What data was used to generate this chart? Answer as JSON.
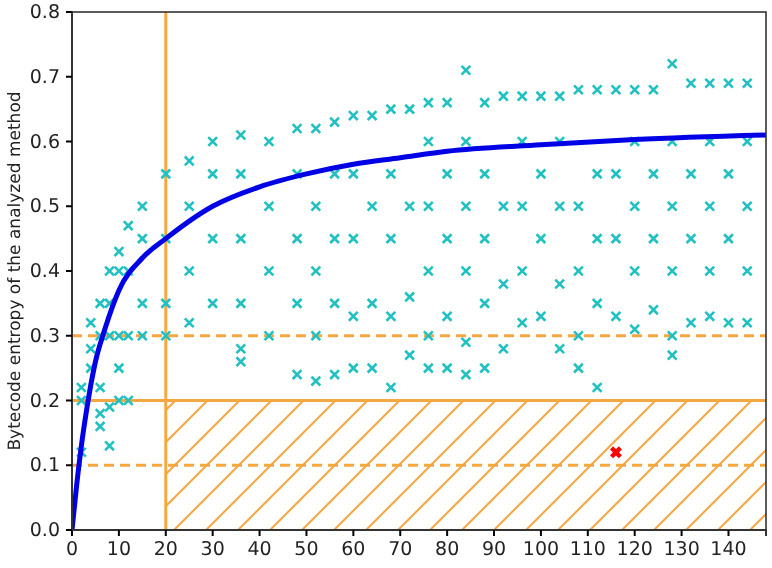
{
  "chart_data": {
    "type": "scatter",
    "ylabel": "Bytecode entropy of the analyzed method",
    "xlim": [
      0,
      148
    ],
    "ylim": [
      0,
      0.8
    ],
    "xticks": [
      0,
      10,
      20,
      30,
      40,
      50,
      60,
      70,
      80,
      90,
      100,
      110,
      120,
      130,
      140
    ],
    "yticks": [
      {
        "value": 0,
        "label": "0.0"
      },
      0.1,
      0.2,
      0.3,
      0.4,
      0.5,
      0.6,
      0.7,
      0.8
    ],
    "grid": false,
    "series": [
      {
        "marker": "cross",
        "color": "#22c0c0",
        "x": [
          2,
          2,
          2,
          4,
          4,
          4,
          6,
          6,
          6,
          6,
          6,
          8,
          8,
          8,
          8,
          8,
          10,
          10,
          10,
          10,
          10,
          12,
          12,
          12,
          12,
          15,
          15,
          15,
          15,
          20,
          20,
          20,
          20,
          25,
          25,
          25,
          25,
          30,
          30,
          30,
          30,
          36,
          36,
          36,
          36,
          36,
          36,
          42,
          42,
          42,
          42,
          48,
          48,
          48,
          48,
          48,
          52,
          52,
          52,
          52,
          52,
          56,
          56,
          56,
          56,
          56,
          60,
          60,
          60,
          60,
          60,
          64,
          64,
          64,
          64,
          68,
          68,
          68,
          68,
          68,
          72,
          72,
          72,
          72,
          76,
          76,
          76,
          76,
          76,
          76,
          80,
          80,
          80,
          80,
          80,
          84,
          84,
          84,
          84,
          84,
          84,
          88,
          88,
          88,
          88,
          88,
          92,
          92,
          92,
          92,
          96,
          96,
          96,
          96,
          96,
          100,
          100,
          100,
          100,
          104,
          104,
          104,
          104,
          104,
          108,
          108,
          108,
          108,
          108,
          112,
          112,
          112,
          112,
          112,
          116,
          116,
          116,
          116,
          120,
          120,
          120,
          120,
          120,
          124,
          124,
          124,
          124,
          128,
          128,
          128,
          128,
          128,
          128,
          132,
          132,
          132,
          132,
          136,
          136,
          136,
          136,
          136,
          140,
          140,
          140,
          140,
          144,
          144,
          144,
          144,
          144
        ],
        "values": [
          0.12,
          0.2,
          0.22,
          0.25,
          0.28,
          0.32,
          0.16,
          0.18,
          0.22,
          0.3,
          0.35,
          0.13,
          0.19,
          0.3,
          0.35,
          0.4,
          0.2,
          0.25,
          0.3,
          0.4,
          0.43,
          0.2,
          0.3,
          0.4,
          0.47,
          0.3,
          0.35,
          0.45,
          0.5,
          0.3,
          0.35,
          0.45,
          0.55,
          0.32,
          0.4,
          0.5,
          0.57,
          0.35,
          0.45,
          0.55,
          0.6,
          0.26,
          0.28,
          0.35,
          0.45,
          0.55,
          0.61,
          0.3,
          0.4,
          0.5,
          0.6,
          0.24,
          0.35,
          0.45,
          0.55,
          0.62,
          0.23,
          0.3,
          0.4,
          0.5,
          0.62,
          0.24,
          0.35,
          0.45,
          0.55,
          0.63,
          0.25,
          0.33,
          0.45,
          0.55,
          0.64,
          0.25,
          0.35,
          0.5,
          0.64,
          0.22,
          0.33,
          0.45,
          0.55,
          0.65,
          0.27,
          0.36,
          0.5,
          0.65,
          0.25,
          0.3,
          0.4,
          0.5,
          0.6,
          0.66,
          0.25,
          0.33,
          0.45,
          0.55,
          0.66,
          0.24,
          0.29,
          0.4,
          0.5,
          0.6,
          0.71,
          0.25,
          0.35,
          0.45,
          0.55,
          0.66,
          0.28,
          0.38,
          0.5,
          0.67,
          0.32,
          0.4,
          0.5,
          0.6,
          0.67,
          0.33,
          0.45,
          0.55,
          0.67,
          0.28,
          0.38,
          0.5,
          0.6,
          0.67,
          0.25,
          0.3,
          0.4,
          0.5,
          0.68,
          0.22,
          0.35,
          0.45,
          0.55,
          0.68,
          0.33,
          0.45,
          0.55,
          0.68,
          0.31,
          0.4,
          0.5,
          0.6,
          0.68,
          0.34,
          0.45,
          0.55,
          0.68,
          0.27,
          0.3,
          0.4,
          0.5,
          0.6,
          0.72,
          0.32,
          0.45,
          0.55,
          0.69,
          0.33,
          0.4,
          0.5,
          0.6,
          0.69,
          0.32,
          0.45,
          0.55,
          0.69,
          0.32,
          0.4,
          0.5,
          0.6,
          0.69
        ]
      },
      {
        "type": "line",
        "marker": "none",
        "color": "#0000e6",
        "x": [
          0,
          1,
          2,
          3,
          5,
          7,
          10,
          15,
          20,
          30,
          40,
          50,
          60,
          70,
          80,
          100,
          120,
          148
        ],
        "values": [
          0,
          0.07,
          0.13,
          0.18,
          0.26,
          0.31,
          0.37,
          0.42,
          0.45,
          0.5,
          0.53,
          0.55,
          0.565,
          0.575,
          0.585,
          0.595,
          0.603,
          0.61
        ]
      },
      {
        "type": "scatter",
        "marker": "cross",
        "color": "#ff0000",
        "x": [
          116
        ],
        "values": [
          0.12
        ]
      }
    ],
    "ref_lines": [
      {
        "axis": "x",
        "value": 20,
        "color": "#f5a742",
        "line_style": "solid"
      },
      {
        "axis": "y",
        "value": 0.3,
        "color": "#f5a742",
        "line_style": "dashed"
      },
      {
        "axis": "y",
        "value": 0.2,
        "color": "#f5a742",
        "line_style": "solid"
      },
      {
        "axis": "y",
        "value": 0.1,
        "color": "#f5a742",
        "line_style": "dashed"
      }
    ],
    "bands": [
      {
        "axis": "y",
        "from": 0,
        "to": 0.2,
        "color": "#f5a742"
      }
    ]
  }
}
